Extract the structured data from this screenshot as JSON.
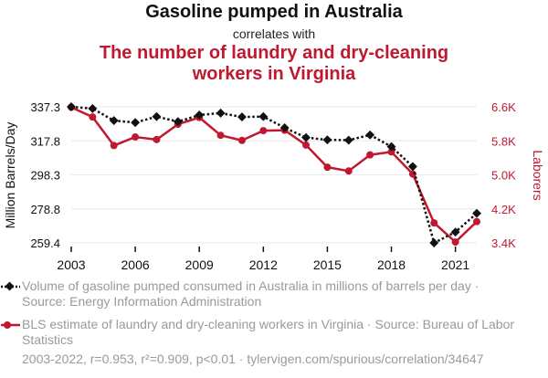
{
  "titles": {
    "main": "Gasoline pumped in Australia",
    "connector": "correlates with",
    "secondary_line1": "The number of laundry and dry-cleaning",
    "secondary_line2": "workers in Virginia"
  },
  "colors": {
    "series1": "#111111",
    "series2": "#c0182f",
    "grid": "#e8e8e8",
    "muted": "#9a9a9a"
  },
  "chart_data": {
    "type": "line",
    "x": [
      2003,
      2004,
      2005,
      2006,
      2007,
      2008,
      2009,
      2010,
      2011,
      2012,
      2013,
      2014,
      2015,
      2016,
      2017,
      2018,
      2019,
      2020,
      2021,
      2022
    ],
    "series": [
      {
        "name": "Volume of gasoline pumped consumed in Australia in millions of barrels per day",
        "axis": "left",
        "style": "dotted-diamond",
        "values": [
          337.3,
          336.3,
          329.4,
          328.3,
          331.7,
          328.8,
          332.6,
          333.7,
          331.5,
          331.7,
          325.3,
          319.7,
          318.4,
          318.2,
          321.2,
          314.5,
          303.1,
          259.4,
          265.6,
          276.3
        ]
      },
      {
        "name": "BLS estimate of laundry and dry-cleaning workers in Virginia",
        "axis": "right",
        "style": "solid-circle",
        "values": [
          6590,
          6360,
          5690,
          5890,
          5830,
          6190,
          6350,
          5930,
          5810,
          6040,
          6050,
          5700,
          5180,
          5090,
          5470,
          5540,
          5020,
          3870,
          3420,
          3900
        ]
      }
    ],
    "ylabel_left": "Million Barrels/Day",
    "ylabel_right": "Laborers",
    "yticks_left": [
      "337.3",
      "317.8",
      "298.3",
      "278.8",
      "259.4"
    ],
    "ytick_values_left": [
      337.3,
      317.8,
      298.3,
      278.8,
      259.4
    ],
    "yticks_right": [
      "6.6K",
      "5.8K",
      "5.0K",
      "4.2K",
      "3.4K"
    ],
    "ytick_values_right": [
      6600,
      5800,
      5000,
      4200,
      3400
    ],
    "ylim_left": [
      259.4,
      337.3
    ],
    "ylim_right": [
      3400,
      6600
    ],
    "xticks": [
      "2003",
      "2006",
      "2009",
      "2012",
      "2015",
      "2018",
      "2021"
    ],
    "xtick_values": [
      2003,
      2006,
      2009,
      2012,
      2015,
      2018,
      2021
    ],
    "xlim": [
      2003,
      2022
    ]
  },
  "legend": {
    "item1": "Volume of gasoline pumped consumed in Australia in millions of barrels per day · Source: Energy Information Administration",
    "item2": "BLS estimate of laundry and dry-cleaning workers in Virginia · Source: Bureau of Labor Statistics"
  },
  "footer": "2003-2022, r=0.953, r²=0.909, p<0.01 · tylervigen.com/spurious/correlation/34647"
}
